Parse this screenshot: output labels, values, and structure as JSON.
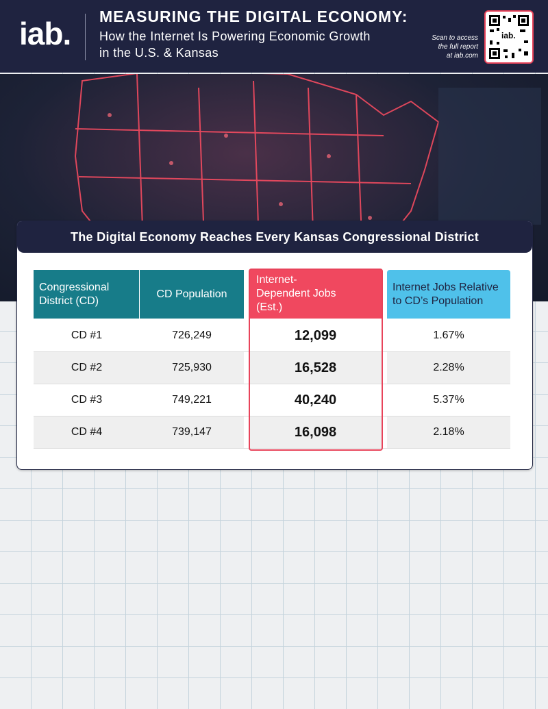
{
  "header": {
    "logo": "iab.",
    "title": "MEASURING THE DIGITAL ECONOMY:",
    "subtitle_lines": [
      "How the Internet Is Powering Economic Growth",
      "in the U.S. & Kansas"
    ],
    "scan_lines": [
      "Scan to access",
      "the full report",
      "at iab.com"
    ],
    "qr_label": "iab."
  },
  "card": {
    "title": "The Digital Economy Reaches Every Kansas Congressional District",
    "table": {
      "columns": [
        "Congressional District (CD)",
        "CD Population",
        "Internet-Dependent Jobs (Est.)",
        "Internet Jobs Relative to CD’s Population"
      ],
      "rows": [
        [
          "CD #1",
          "726,249",
          "12,099",
          "1.67%"
        ],
        [
          "CD #2",
          "725,930",
          "16,528",
          "2.28%"
        ],
        [
          "CD #3",
          "749,221",
          "40,240",
          "5.37%"
        ],
        [
          "CD #4",
          "739,147",
          "16,098",
          "2.18%"
        ]
      ]
    }
  }
}
